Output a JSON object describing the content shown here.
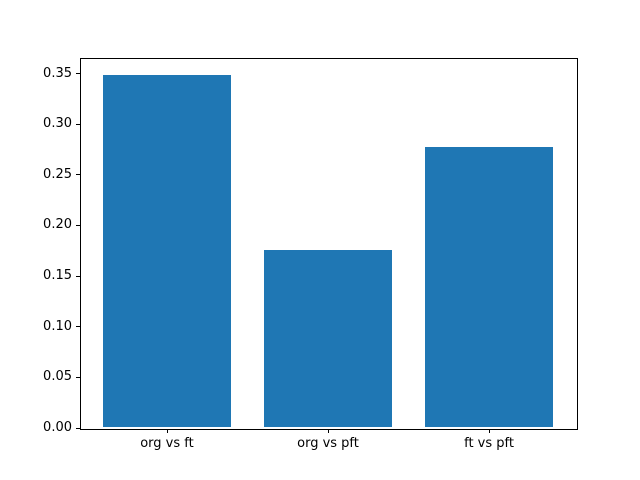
{
  "figure": {
    "background": "#ffffff"
  },
  "chart_data": {
    "type": "bar",
    "title": "",
    "xlabel": "",
    "ylabel": "",
    "categories": [
      "org vs ft",
      "org vs pft",
      "ft vs pft"
    ],
    "values": [
      0.348,
      0.175,
      0.277
    ],
    "bar_color": "#1f77b4",
    "bar_width": 0.8,
    "x_positions": [
      0,
      1,
      2
    ],
    "xlim": [
      -0.54,
      2.54
    ],
    "ylim": [
      0,
      0.3654
    ],
    "yticks": {
      "values": [
        0.0,
        0.05,
        0.1,
        0.15,
        0.2,
        0.25,
        0.3,
        0.35
      ],
      "labels": [
        "0.00",
        "0.05",
        "0.10",
        "0.15",
        "0.20",
        "0.25",
        "0.30",
        "0.35"
      ]
    },
    "grid": false,
    "legend": null,
    "spine_color": "#000000",
    "tick_text_color": "#000000"
  }
}
